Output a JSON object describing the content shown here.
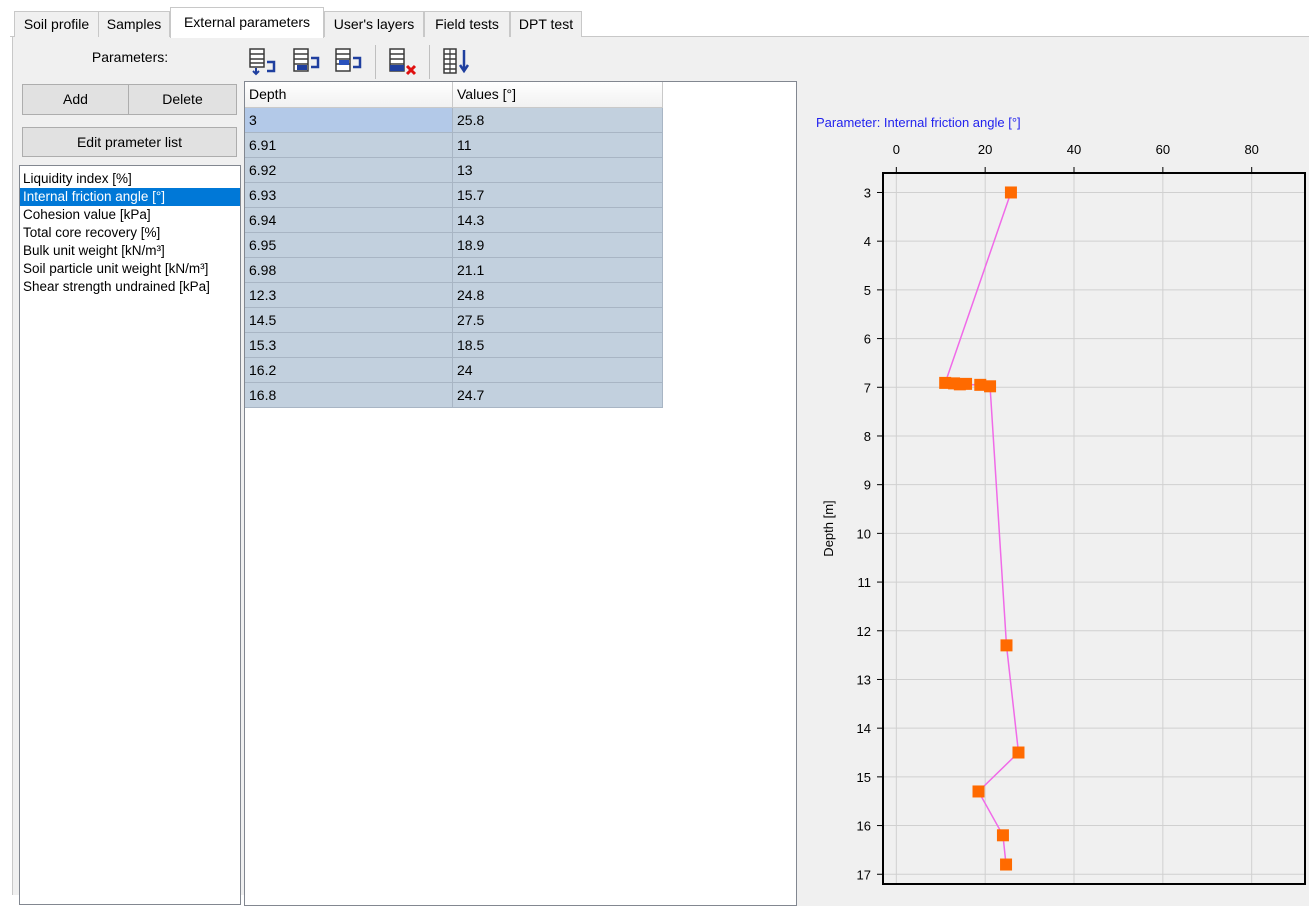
{
  "tabs": [
    {
      "label": "Soil profile",
      "active": false
    },
    {
      "label": "Samples",
      "active": false
    },
    {
      "label": "External parameters",
      "active": true
    },
    {
      "label": "User's layers",
      "active": false
    },
    {
      "label": "Field tests",
      "active": false
    },
    {
      "label": "DPT test",
      "active": false
    }
  ],
  "left_panel": {
    "parameters_label": "Parameters:",
    "add_label": "Add",
    "delete_label": "Delete",
    "edit_list_label": "Edit prameter list",
    "items": [
      {
        "label": "Liquidity index [%]",
        "selected": false
      },
      {
        "label": "Internal friction angle [°]",
        "selected": true
      },
      {
        "label": "Cohesion value [kPa]",
        "selected": false
      },
      {
        "label": "Total core recovery [%]",
        "selected": false
      },
      {
        "label": "Bulk unit weight [kN/m³]",
        "selected": false
      },
      {
        "label": "Soil particle unit weight [kN/m³]",
        "selected": false
      },
      {
        "label": "Shear strength undrained [kPa]",
        "selected": false
      }
    ]
  },
  "toolbar": {
    "icons": [
      "insert-row-icon",
      "append-row-icon",
      "copy-row-icon",
      "delete-rows-icon",
      "sort-icon"
    ]
  },
  "grid": {
    "columns": [
      "Depth",
      "Values [°]"
    ],
    "rows": [
      [
        "3",
        "25.8"
      ],
      [
        "6.91",
        "11"
      ],
      [
        "6.92",
        "13"
      ],
      [
        "6.93",
        "15.7"
      ],
      [
        "6.94",
        "14.3"
      ],
      [
        "6.95",
        "18.9"
      ],
      [
        "6.98",
        "21.1"
      ],
      [
        "12.3",
        "24.8"
      ],
      [
        "14.5",
        "27.5"
      ],
      [
        "15.3",
        "18.5"
      ],
      [
        "16.2",
        "24"
      ],
      [
        "16.8",
        "24.7"
      ]
    ]
  },
  "chart_data": {
    "type": "line",
    "title": "Parameter: Internal friction angle [°]",
    "xlabel": "",
    "ylabel": "Depth [m]",
    "xlim": [
      -3,
      92
    ],
    "ylim": [
      2.6,
      17.2
    ],
    "x_ticks": [
      0,
      20,
      40,
      60,
      80
    ],
    "y_ticks": [
      3,
      4,
      5,
      6,
      7,
      8,
      9,
      10,
      11,
      12,
      13,
      14,
      15,
      16,
      17
    ],
    "y_inverted": true,
    "x_axis_position": "top",
    "grid": true,
    "series": [
      {
        "values": [
          {
            "x": 25.8,
            "y": 3
          },
          {
            "x": 11,
            "y": 6.91
          },
          {
            "x": 13,
            "y": 6.92
          },
          {
            "x": 15.7,
            "y": 6.93
          },
          {
            "x": 14.3,
            "y": 6.94
          },
          {
            "x": 18.9,
            "y": 6.95
          },
          {
            "x": 21.1,
            "y": 6.98
          },
          {
            "x": 24.8,
            "y": 12.3
          },
          {
            "x": 27.5,
            "y": 14.5
          },
          {
            "x": 18.5,
            "y": 15.3
          },
          {
            "x": 24,
            "y": 16.2
          },
          {
            "x": 24.7,
            "y": 16.8
          }
        ],
        "line_color": "#f06ae8",
        "marker_color": "#ff6a00"
      }
    ]
  }
}
